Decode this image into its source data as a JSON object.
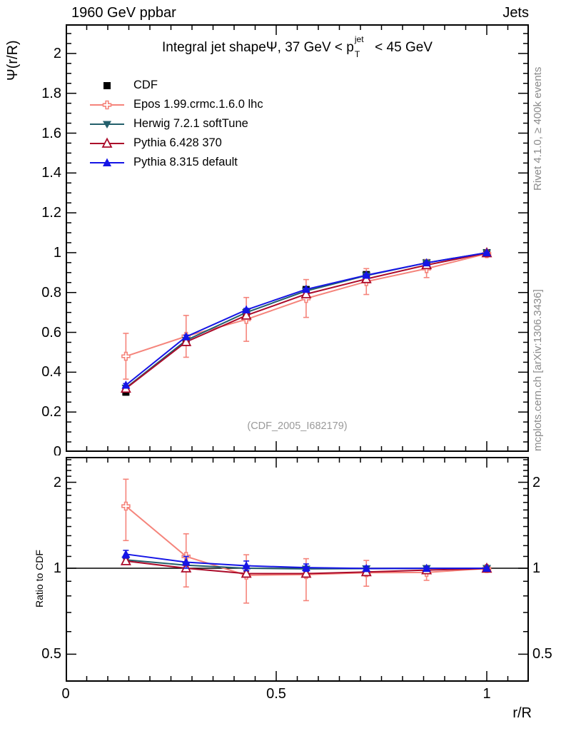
{
  "header": {
    "left": "1960 GeV ppbar",
    "right": "Jets"
  },
  "title": {
    "pre": "Integral jet shape",
    "psi": "Ψ",
    "mid": ", 37 GeV < p",
    "sup": "jet",
    "sub": "T",
    "post": " < 45 GeV"
  },
  "axes": {
    "main_y_label": "Ψ(r/R)",
    "ratio_y_label": "Ratio to CDF",
    "x_label": "r/R",
    "main_y_tick_values": [
      0,
      0.2,
      0.4,
      0.6,
      0.8,
      1,
      1.2,
      1.4,
      1.6,
      1.8,
      2
    ],
    "main_y_tick_labels": [
      "0",
      "0.2",
      "0.4",
      "0.6",
      "0.8",
      "1",
      "1.2",
      "1.4",
      "1.6",
      "1.8",
      "2"
    ],
    "ratio_y_tick_values": [
      0.5,
      1,
      2
    ],
    "ratio_y_tick_labels": [
      "0.5",
      "1",
      "2"
    ],
    "x_tick_values": [
      0,
      0.5,
      1
    ],
    "x_tick_labels": [
      "0",
      "0.5",
      "1"
    ]
  },
  "watermark": "(CDF_2005_I682179)",
  "side_notes": {
    "top": "Rivet 4.1.0, ≥ 400k events",
    "bottom": "mcplots.cern.ch [arXiv:1306.3436]"
  },
  "colors": {
    "cdf": "#000000",
    "epos": "#F5847B",
    "herwig": "#235F6B",
    "pythia6": "#AB0B2A",
    "pythia8": "#1515E6",
    "notes_gray": "#8B8B8B",
    "watermark_gray": "#9A9A9A"
  },
  "chart_data": [
    {
      "type": "line",
      "panel": "main",
      "title": "Integral jet shape Ψ, 37 GeV < pT(jet) < 45 GeV",
      "xlabel": "r/R",
      "ylabel": "Ψ(r/R)",
      "xlim": [
        0,
        1.1
      ],
      "ylim": [
        0,
        2.147
      ],
      "grid": false,
      "legend_position": "top-left",
      "x": [
        0.143,
        0.286,
        0.429,
        0.571,
        0.714,
        0.857,
        1.0
      ],
      "series": [
        {
          "name": "CDF",
          "key": "cdf",
          "marker": "filled-square",
          "color": "#000000",
          "line": false,
          "values": [
            0.3,
            0.55,
            0.7,
            0.815,
            0.89,
            0.95,
            1.0
          ],
          "errors": [
            0.015,
            0.015,
            0.012,
            0.01,
            0.008,
            0.006,
            0.004
          ]
        },
        {
          "name": "Epos 1.99.crmc.1.6.0 lhc",
          "key": "epos",
          "marker": "open-cross",
          "color": "#F5847B",
          "line": true,
          "values": [
            0.48,
            0.58,
            0.665,
            0.77,
            0.855,
            0.92,
            0.995
          ],
          "errors": [
            0.115,
            0.105,
            0.11,
            0.095,
            0.065,
            0.045,
            0.012
          ]
        },
        {
          "name": "Herwig 7.2.1 softTune",
          "key": "herwig",
          "marker": "filled-triangle-down",
          "color": "#235F6B",
          "line": true,
          "values": [
            0.321,
            0.56,
            0.7,
            0.808,
            0.885,
            0.949,
            1.0
          ],
          "errors": [
            0.008,
            0.008,
            0.007,
            0.006,
            0.005,
            0.004,
            0.003
          ]
        },
        {
          "name": "Pythia 6.428 370",
          "key": "pythia6",
          "marker": "open-triangle-up",
          "color": "#AB0B2A",
          "line": true,
          "values": [
            0.318,
            0.552,
            0.685,
            0.792,
            0.868,
            0.938,
            0.998
          ],
          "errors": [
            0.008,
            0.008,
            0.007,
            0.006,
            0.005,
            0.004,
            0.003
          ]
        },
        {
          "name": "Pythia 8.315 default",
          "key": "pythia8",
          "marker": "filled-triangle-up",
          "color": "#1515E6",
          "line": true,
          "values": [
            0.335,
            0.578,
            0.713,
            0.816,
            0.887,
            0.949,
            1.0
          ],
          "errors": [
            0.008,
            0.008,
            0.007,
            0.006,
            0.005,
            0.004,
            0.003
          ]
        }
      ]
    },
    {
      "type": "line",
      "panel": "ratio",
      "ylabel": "Ratio to CDF",
      "yscale": "log",
      "xlim": [
        0,
        1.1
      ],
      "ylim": [
        0.4,
        2.45
      ],
      "reference_line": 1,
      "x": [
        0.143,
        0.286,
        0.429,
        0.571,
        0.714,
        0.857,
        1.0
      ],
      "series": [
        {
          "name": "Epos 1.99.crmc.1.6.0 lhc",
          "key": "epos",
          "marker": "open-cross",
          "color": "#F5847B",
          "line": true,
          "values": [
            1.65,
            1.1,
            0.945,
            0.95,
            0.965,
            0.967,
            0.998
          ],
          "err_up": [
            0.4,
            0.22,
            0.17,
            0.13,
            0.1,
            0.055,
            0.015
          ],
          "err_down": [
            0.4,
            0.24,
            0.19,
            0.18,
            0.1,
            0.06,
            0.015
          ]
        },
        {
          "name": "Herwig 7.2.1 softTune",
          "key": "herwig",
          "marker": "filled-triangle-down",
          "color": "#235F6B",
          "line": true,
          "values": [
            1.07,
            1.025,
            1.0,
            0.995,
            0.997,
            0.999,
            1.0
          ],
          "errors": [
            0.02,
            0.02,
            0.018,
            0.015,
            0.012,
            0.01,
            0.006
          ]
        },
        {
          "name": "Pythia 6.428 370",
          "key": "pythia6",
          "marker": "open-triangle-up",
          "color": "#AB0B2A",
          "line": true,
          "values": [
            1.06,
            1.0,
            0.958,
            0.958,
            0.97,
            0.985,
            0.998
          ],
          "errors": [
            0.022,
            0.02,
            0.018,
            0.015,
            0.012,
            0.01,
            0.006
          ]
        },
        {
          "name": "Pythia 8.315 default",
          "key": "pythia8",
          "marker": "filled-triangle-up",
          "color": "#1515E6",
          "line": true,
          "values": [
            1.12,
            1.05,
            1.02,
            1.005,
            0.998,
            0.999,
            1.0
          ],
          "errors": [
            0.035,
            0.05,
            0.04,
            0.03,
            0.02,
            0.015,
            0.008
          ]
        }
      ]
    }
  ]
}
